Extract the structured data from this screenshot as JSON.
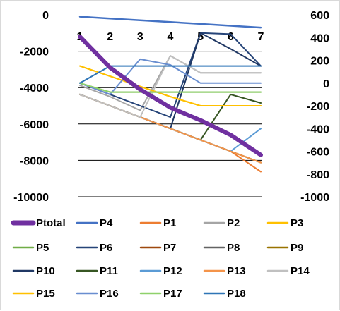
{
  "chart_data": {
    "type": "line",
    "title": "",
    "xlabel": "",
    "ylabel": "",
    "grid": true,
    "legend_position": "bottom",
    "x": [
      1,
      2,
      3,
      4,
      5,
      6,
      7
    ],
    "x_tick_labels": [
      "1",
      "2",
      "3",
      "4",
      "5",
      "6",
      "7"
    ],
    "y_left": {
      "range": [
        -10000,
        0
      ],
      "ticks": [
        0,
        -2000,
        -4000,
        -6000,
        -8000,
        -10000
      ],
      "tick_labels": [
        "0",
        "-2000",
        "-4000",
        "-6000",
        "-8000",
        "-10000"
      ]
    },
    "y_right": {
      "range": [
        -1000,
        600
      ],
      "ticks": [
        600,
        400,
        200,
        0,
        -200,
        -400,
        -600,
        -800,
        -1000
      ],
      "tick_labels": [
        "600",
        "400",
        "200",
        "0",
        "-200",
        "-400",
        "-600",
        "-800",
        "-1000"
      ]
    },
    "series": [
      {
        "name": "Ptotal",
        "axis": "left",
        "color": "#7030a0",
        "width": 6,
        "values": [
          -1200,
          -2900,
          -4100,
          -5100,
          -5800,
          -6600,
          -7700
        ]
      },
      {
        "name": "P4",
        "axis": "left",
        "color": "#4472c4",
        "width": 2.5,
        "values": [
          -100,
          -200,
          -300,
          -400,
          -500,
          -600,
          -700
        ]
      },
      {
        "name": "P1",
        "axis": "right",
        "color": "#ed7d31",
        "width": 2,
        "values": [
          -100,
          -200,
          -300,
          -400,
          -500,
          -600,
          -780
        ]
      },
      {
        "name": "P2",
        "axis": "right",
        "color": "#a5a5a5",
        "width": 2,
        "values": [
          -20,
          -120,
          -240,
          240,
          90,
          90,
          90
        ]
      },
      {
        "name": "P3",
        "axis": "right",
        "color": "#ffc000",
        "width": 2,
        "values": [
          150,
          60,
          -30,
          -120,
          -200,
          -200,
          -200
        ]
      },
      {
        "name": "P5",
        "axis": "right",
        "color": "#70ad47",
        "width": 2,
        "values": [
          0,
          -80,
          -80,
          -80,
          -80,
          -80,
          -80
        ]
      },
      {
        "name": "P6",
        "axis": "right",
        "color": "#264478",
        "width": 2,
        "values": [
          0,
          -100,
          -200,
          -300,
          440,
          430,
          150
        ]
      },
      {
        "name": "P7",
        "axis": "right",
        "color": "#9e480e",
        "width": 2,
        "values": [
          -100,
          -200,
          -300,
          -400,
          -500,
          -600,
          -700
        ]
      },
      {
        "name": "P8",
        "axis": "right",
        "color": "#636363",
        "width": 2,
        "values": [
          -100,
          -200,
          -300,
          -400,
          -500,
          -600,
          -700
        ]
      },
      {
        "name": "P9",
        "axis": "right",
        "color": "#997300",
        "width": 2,
        "values": [
          -100,
          -200,
          -300,
          -400,
          -500,
          -600,
          -700
        ]
      },
      {
        "name": "P10",
        "axis": "right",
        "color": "#203864",
        "width": 2,
        "values": [
          -100,
          -200,
          -300,
          -400,
          440,
          300,
          150
        ]
      },
      {
        "name": "P11",
        "axis": "right",
        "color": "#375623",
        "width": 2,
        "values": [
          -100,
          -200,
          -300,
          -400,
          -500,
          -100,
          -175
        ]
      },
      {
        "name": "P12",
        "axis": "right",
        "color": "#5b9bd5",
        "width": 2,
        "values": [
          -100,
          -200,
          -300,
          -400,
          -500,
          -600,
          -400
        ]
      },
      {
        "name": "P13",
        "axis": "right",
        "color": "#f4944a",
        "width": 2,
        "values": [
          -100,
          -200,
          -300,
          -400,
          -500,
          -600,
          -700
        ]
      },
      {
        "name": "P14",
        "axis": "right",
        "color": "#c0c0c0",
        "width": 2,
        "values": [
          -100,
          -200,
          -300,
          240,
          90,
          90,
          90
        ]
      },
      {
        "name": "P15",
        "axis": "right",
        "color": "#ffc000",
        "width": 2,
        "values": [
          150,
          60,
          -30,
          -120,
          -200,
          -200,
          -200
        ]
      },
      {
        "name": "P16",
        "axis": "right",
        "color": "#698ed0",
        "width": 2,
        "values": [
          0,
          -100,
          210,
          160,
          0,
          0,
          0
        ]
      },
      {
        "name": "P17",
        "axis": "right",
        "color": "#8fd16b",
        "width": 2,
        "values": [
          0,
          -80,
          -80,
          -80,
          -80,
          -80,
          -80
        ]
      },
      {
        "name": "P18",
        "axis": "right",
        "color": "#2e75b6",
        "width": 2,
        "values": [
          0,
          150,
          150,
          150,
          150,
          150,
          150
        ]
      }
    ]
  }
}
